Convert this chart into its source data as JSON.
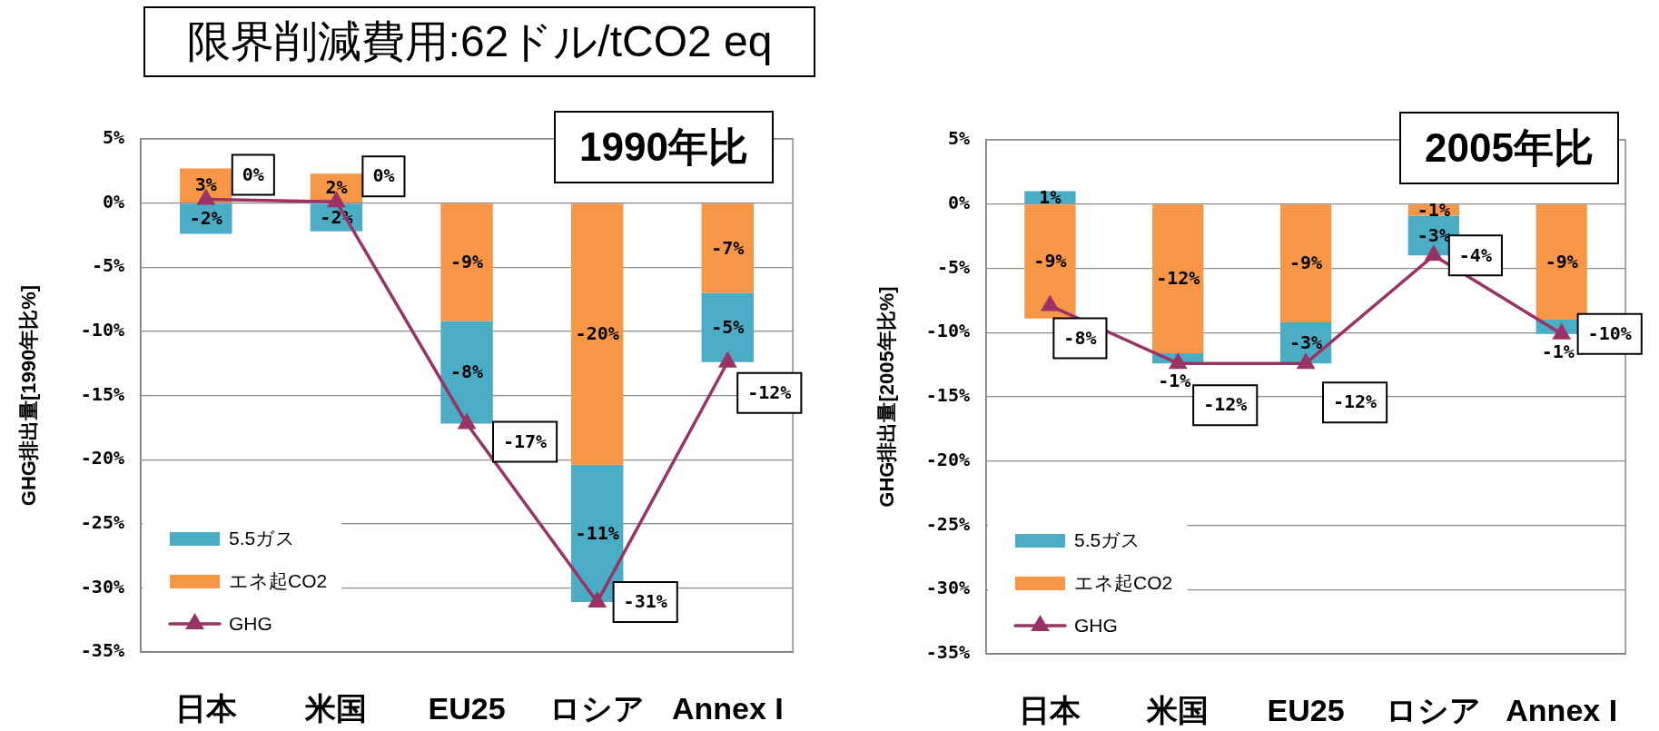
{
  "chart_data": [
    {
      "type": "bar",
      "title": "限界削減費用:62ドル/tCO2 eq",
      "subtitle": "1990年比",
      "ylabel": "GHG排出量[1990年比%]",
      "categories": [
        "日本",
        "米国",
        "EU25",
        "ロシア",
        "Annex I"
      ],
      "stacked": true,
      "marker": "triangle",
      "grid": "y",
      "legend": "bottom left",
      "ylim": [
        -35,
        5
      ],
      "yticks": [
        {
          "value": 5,
          "label": "5%"
        },
        {
          "value": 0,
          "label": "0%"
        },
        {
          "value": -5,
          "label": "-5%"
        },
        {
          "value": -10,
          "label": "-10%"
        },
        {
          "value": -15,
          "label": "-15%"
        },
        {
          "value": -20,
          "label": "-20%"
        },
        {
          "value": -25,
          "label": "-25%"
        },
        {
          "value": -30,
          "label": "-30%"
        },
        {
          "value": -35,
          "label": "-35%"
        }
      ],
      "series": [
        {
          "name": "エネ起CO2",
          "color": "#f79646",
          "values": [
            2.7,
            2.3,
            -9.2,
            -20.4,
            -7.0
          ],
          "value_labels": [
            "3%",
            "2%",
            "-9%",
            "-20%",
            "-7%"
          ]
        },
        {
          "name": "5.5ガス",
          "color": "#4bacc6",
          "values": [
            -2.4,
            -2.2,
            -8.0,
            -10.7,
            -5.4
          ],
          "value_labels": [
            "-2%",
            "-2%",
            "-8%",
            "-11%",
            "-5%"
          ]
        },
        {
          "name": "GHG",
          "type": "line",
          "color": "#993366",
          "values": [
            0.3,
            0.1,
            -17.2,
            -31.1,
            -12.4
          ],
          "value_labels": [
            "0%",
            "0%",
            "-17%",
            "-31%",
            "-12%"
          ]
        }
      ]
    },
    {
      "type": "bar",
      "subtitle": "2005年比",
      "ylabel": "GHG排出量[2005年比%]",
      "categories": [
        "日本",
        "米国",
        "EU25",
        "ロシア",
        "Annex I"
      ],
      "stacked": true,
      "marker": "triangle",
      "grid": "y",
      "legend": "bottom left",
      "ylim": [
        -35,
        5
      ],
      "yticks": [
        {
          "value": 5,
          "label": "5%"
        },
        {
          "value": 0,
          "label": "0%"
        },
        {
          "value": -5,
          "label": "-5%"
        },
        {
          "value": -10,
          "label": "-10%"
        },
        {
          "value": -15,
          "label": "-15%"
        },
        {
          "value": -20,
          "label": "-20%"
        },
        {
          "value": -25,
          "label": "-25%"
        },
        {
          "value": -30,
          "label": "-30%"
        },
        {
          "value": -35,
          "label": "-35%"
        }
      ],
      "series": [
        {
          "name": "エネ起CO2",
          "color": "#f79646",
          "values": [
            -8.9,
            -11.6,
            -9.2,
            -0.9,
            -9.0
          ],
          "value_labels": [
            "-9%",
            "-12%",
            "-9%",
            "-1%",
            "-9%"
          ]
        },
        {
          "name": "5.5ガス",
          "color": "#4bacc6",
          "values": [
            1.0,
            -0.8,
            -3.2,
            -3.1,
            -1.1
          ],
          "value_labels": [
            "1%",
            "-1%",
            "-3%",
            "-3%",
            "-1%"
          ]
        },
        {
          "name": "GHG",
          "type": "line",
          "color": "#993366",
          "values": [
            -7.9,
            -12.4,
            -12.4,
            -4.0,
            -10.1
          ],
          "value_labels": [
            "-8%",
            "-12%",
            "-12%",
            "-4%",
            "-10%"
          ]
        }
      ]
    }
  ]
}
